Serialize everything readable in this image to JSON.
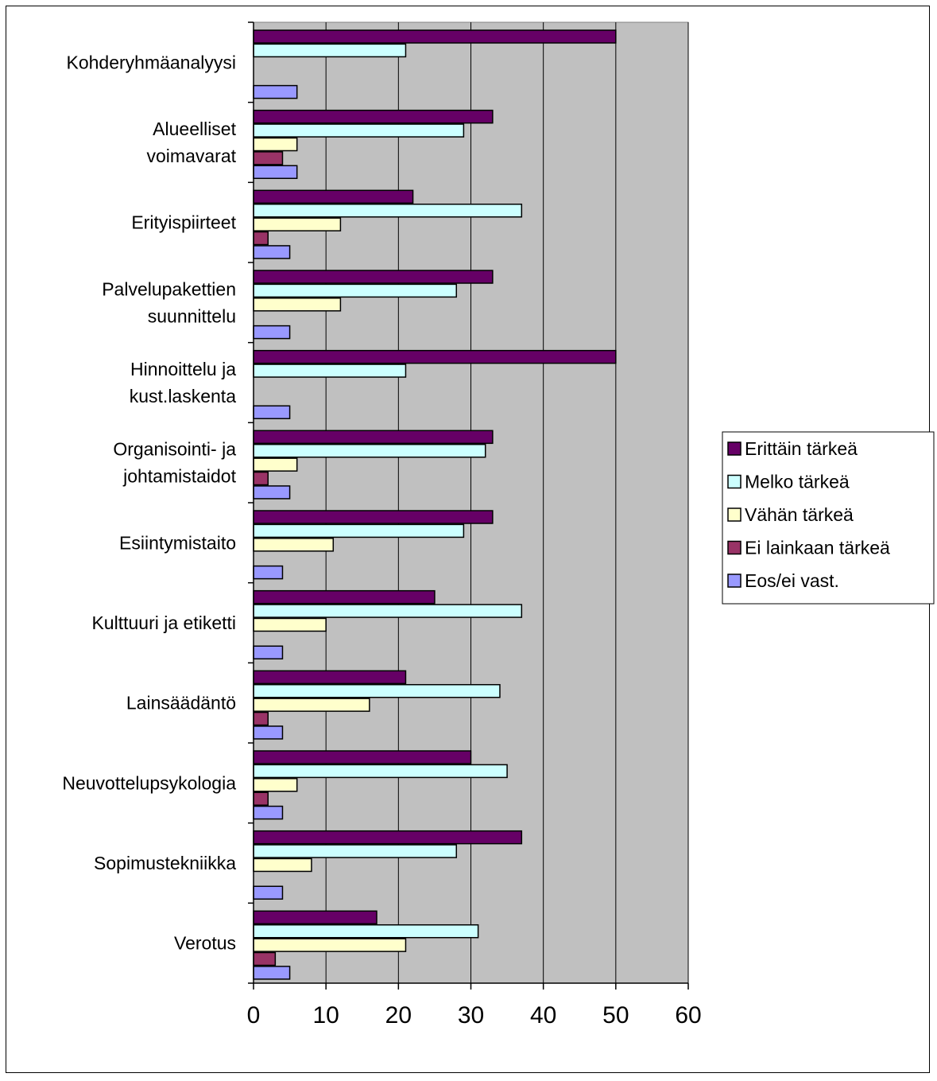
{
  "chart_data": {
    "type": "bar",
    "orientation": "horizontal",
    "title": "",
    "xlabel": "",
    "ylabel": "",
    "xlim": [
      0,
      60
    ],
    "x_ticks": [
      "0",
      "10",
      "20",
      "30",
      "40",
      "50",
      "60"
    ],
    "grid": "vertical",
    "plot_background": "#c0c0c0",
    "legend_position": "right",
    "categories": [
      [
        "Kohderyhmäanalyysi"
      ],
      [
        "Alueelliset",
        "voimavarat"
      ],
      [
        "Erityispiirteet"
      ],
      [
        "Palvelupakettien",
        "suunnittelu"
      ],
      [
        "Hinnoittelu ja",
        "kust.laskenta"
      ],
      [
        "Organisointi- ja",
        "johtamistaidot"
      ],
      [
        "Esiintymistaito"
      ],
      [
        "Kulttuuri ja etiketti"
      ],
      [
        "Lainsäädäntö"
      ],
      [
        "Neuvottelupsykologia"
      ],
      [
        "Sopimustekniikka"
      ],
      [
        "Verotus"
      ]
    ],
    "series": [
      {
        "name": "Erittäin tärkeä",
        "color": "#660066",
        "values": [
          50,
          33,
          22,
          33,
          50,
          33,
          33,
          25,
          21,
          30,
          37,
          17
        ]
      },
      {
        "name": "Melko tärkeä",
        "color": "#ccffff",
        "values": [
          21,
          29,
          37,
          28,
          21,
          32,
          29,
          37,
          34,
          35,
          28,
          31
        ]
      },
      {
        "name": "Vähän tärkeä",
        "color": "#ffffcc",
        "values": [
          0,
          6,
          12,
          12,
          0,
          6,
          11,
          10,
          16,
          6,
          8,
          21
        ]
      },
      {
        "name": "Ei lainkaan tärkeä",
        "color": "#993366",
        "values": [
          0,
          4,
          2,
          0,
          0,
          2,
          0,
          0,
          2,
          2,
          0,
          3
        ]
      },
      {
        "name": "Eos/ei vast.",
        "color": "#9999ff",
        "values": [
          6,
          6,
          5,
          5,
          5,
          5,
          4,
          4,
          4,
          4,
          4,
          5
        ]
      }
    ]
  }
}
